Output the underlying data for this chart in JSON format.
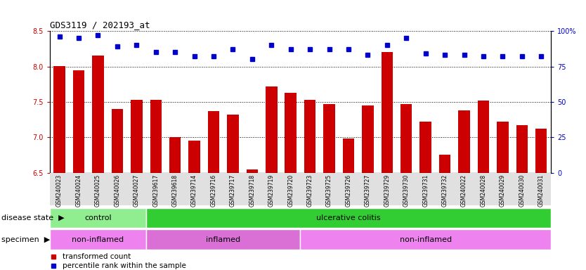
{
  "title": "GDS3119 / 202193_at",
  "samples": [
    "GSM240023",
    "GSM240024",
    "GSM240025",
    "GSM240026",
    "GSM240027",
    "GSM239617",
    "GSM239618",
    "GSM239714",
    "GSM239716",
    "GSM239717",
    "GSM239718",
    "GSM239719",
    "GSM239720",
    "GSM239723",
    "GSM239725",
    "GSM239726",
    "GSM239727",
    "GSM239729",
    "GSM239730",
    "GSM239731",
    "GSM239732",
    "GSM240022",
    "GSM240028",
    "GSM240029",
    "GSM240030",
    "GSM240031"
  ],
  "bar_values": [
    8.01,
    7.95,
    8.15,
    7.4,
    7.53,
    7.53,
    7.0,
    6.95,
    7.37,
    7.32,
    6.55,
    7.72,
    7.63,
    7.53,
    7.47,
    6.98,
    7.45,
    8.2,
    7.47,
    7.22,
    6.76,
    7.38,
    7.52,
    7.22,
    7.17,
    7.12
  ],
  "percentile_values": [
    96,
    95,
    97,
    89,
    90,
    85,
    85,
    82,
    82,
    87,
    80,
    90,
    87,
    87,
    87,
    87,
    83,
    90,
    95,
    84,
    83,
    83,
    82,
    82,
    82,
    82
  ],
  "ylim_left": [
    6.5,
    8.5
  ],
  "ylim_right": [
    0,
    100
  ],
  "yticks_left": [
    6.5,
    7.0,
    7.5,
    8.0,
    8.5
  ],
  "yticks_right": [
    0,
    25,
    50,
    75,
    100
  ],
  "bar_color": "#cc0000",
  "dot_color": "#0000cc",
  "disease_state_groups": [
    {
      "label": "control",
      "start": 0,
      "end": 5,
      "color": "#90ee90"
    },
    {
      "label": "ulcerative colitis",
      "start": 5,
      "end": 26,
      "color": "#32cd32"
    }
  ],
  "specimen_groups": [
    {
      "label": "non-inflamed",
      "start": 0,
      "end": 5,
      "color": "#ee82ee"
    },
    {
      "label": "inflamed",
      "start": 5,
      "end": 13,
      "color": "#da70d6"
    },
    {
      "label": "non-inflamed",
      "start": 13,
      "end": 26,
      "color": "#ee82ee"
    }
  ],
  "legend_items": [
    {
      "color": "#cc0000",
      "label": "transformed count"
    },
    {
      "color": "#0000cc",
      "label": "percentile rank within the sample"
    }
  ],
  "plot_bg_color": "#ffffff",
  "fig_bg_color": "#ffffff",
  "xtick_bg": "#e0e0e0",
  "title_fontsize": 9,
  "tick_fontsize": 7,
  "label_fontsize": 8
}
